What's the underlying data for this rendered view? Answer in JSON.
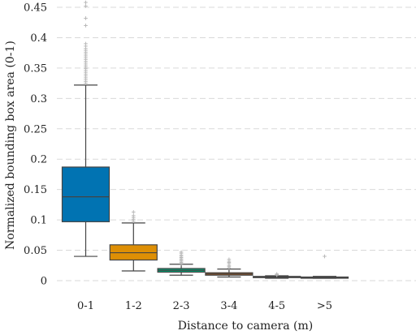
{
  "chart_data": {
    "type": "box",
    "xlabel": "Distance to camera (m)",
    "ylabel": "Normalized bounding box area (0-1)",
    "ylim": [
      0,
      0.46
    ],
    "yticks": [
      0,
      0.05,
      0.1,
      0.15,
      0.2,
      0.25,
      0.3,
      0.35,
      0.4,
      0.45
    ],
    "ytick_labels": [
      "0",
      "0.05",
      "0.1",
      "0.15",
      "0.2",
      "0.25",
      "0.3",
      "0.35",
      "0.4",
      "0.45"
    ],
    "grid": "horizontal-dashed",
    "categories": [
      "0-1",
      "1-2",
      "2-3",
      "3-4",
      "4-5",
      ">5"
    ],
    "colors": [
      "#0173b2",
      "#de8f05",
      "#029e73",
      "#d55e00",
      "#cc78bc",
      "#ca9161"
    ],
    "boxes": [
      {
        "whislo": 0.04,
        "q1": 0.097,
        "med": 0.138,
        "q3": 0.187,
        "whishi": 0.322,
        "fliers": [
          0.325,
          0.328,
          0.331,
          0.334,
          0.337,
          0.34,
          0.343,
          0.346,
          0.349,
          0.352,
          0.355,
          0.358,
          0.361,
          0.364,
          0.367,
          0.37,
          0.373,
          0.376,
          0.379,
          0.382,
          0.386,
          0.39,
          0.42,
          0.432,
          0.452,
          0.458
        ]
      },
      {
        "whislo": 0.016,
        "q1": 0.034,
        "med": 0.046,
        "q3": 0.059,
        "whishi": 0.095,
        "fliers": [
          0.098,
          0.101,
          0.104,
          0.107,
          0.113
        ]
      },
      {
        "whislo": 0.009,
        "q1": 0.014,
        "med": 0.017,
        "q3": 0.02,
        "whishi": 0.027,
        "fliers": [
          0.028,
          0.03,
          0.032,
          0.034,
          0.036,
          0.038,
          0.04,
          0.042,
          0.045,
          0.047
        ]
      },
      {
        "whislo": 0.006,
        "q1": 0.009,
        "med": 0.011,
        "q3": 0.013,
        "whishi": 0.019,
        "fliers": [
          0.021,
          0.023,
          0.025,
          0.028,
          0.03,
          0.032,
          0.035
        ]
      },
      {
        "whislo": 0.004,
        "q1": 0.005,
        "med": 0.006,
        "q3": 0.007,
        "whishi": 0.008,
        "fliers": [
          0.009,
          0.01,
          0.011
        ]
      },
      {
        "whislo": 0.004,
        "q1": 0.004,
        "med": 0.005,
        "q3": 0.006,
        "whishi": 0.007,
        "fliers": [
          0.04
        ]
      }
    ]
  }
}
